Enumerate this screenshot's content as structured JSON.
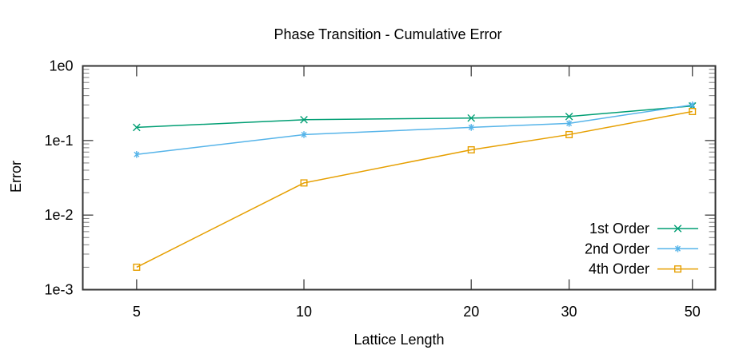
{
  "chart_data": {
    "type": "line",
    "title": "Phase Transition - Cumulative Error",
    "xlabel": "Lattice Length",
    "ylabel": "Error",
    "x_scale": "log",
    "y_scale": "log",
    "xlim": [
      4,
      55
    ],
    "ylim": [
      0.001,
      1
    ],
    "grid": false,
    "legend_position": "inside-bottom-right",
    "x_ticks": [
      {
        "value": 5,
        "label": "5"
      },
      {
        "value": 10,
        "label": "10"
      },
      {
        "value": 20,
        "label": "20"
      },
      {
        "value": 30,
        "label": "30"
      },
      {
        "value": 50,
        "label": "50"
      }
    ],
    "y_ticks": [
      {
        "value": 1,
        "label": "1e0"
      },
      {
        "value": 0.1,
        "label": "1e-1"
      },
      {
        "value": 0.01,
        "label": "1e-2"
      },
      {
        "value": 0.001,
        "label": "1e-3"
      }
    ],
    "x": [
      5,
      10,
      20,
      30,
      50
    ],
    "series": [
      {
        "name": "1st Order",
        "color": "#009e73",
        "marker": "cross",
        "values": [
          0.15,
          0.19,
          0.2,
          0.21,
          0.29
        ]
      },
      {
        "name": "2nd Order",
        "color": "#56b4e9",
        "marker": "asterisk",
        "values": [
          0.065,
          0.12,
          0.15,
          0.17,
          0.3
        ]
      },
      {
        "name": "4th Order",
        "color": "#e69f00",
        "marker": "open-square",
        "values": [
          0.002,
          0.027,
          0.075,
          0.12,
          0.245
        ]
      }
    ],
    "colors": {
      "axis": "#333333",
      "major_tick": "#404040",
      "minor_tick": "#808080",
      "text": "#000000",
      "background": "#ffffff"
    }
  }
}
